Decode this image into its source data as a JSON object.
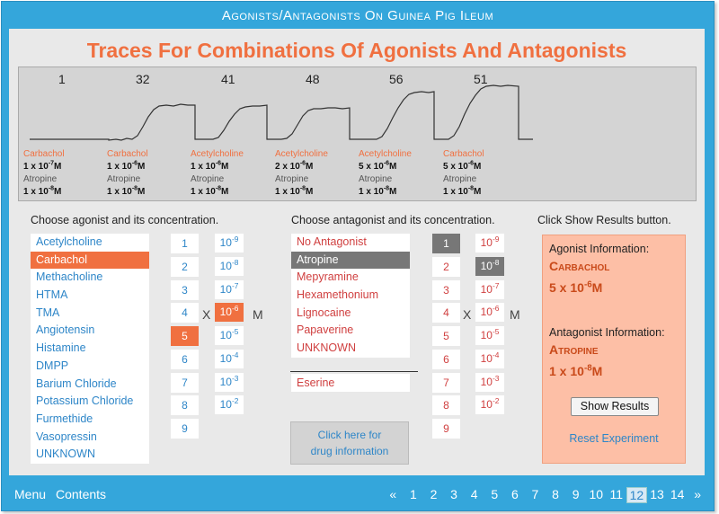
{
  "app": {
    "title": "Agonists/Antagonists On Guinea Pig Ileum"
  },
  "main_title": "Traces For Combinations Of Agonists And Antagonists",
  "traces": [
    {
      "number": "1",
      "agonist": "Carbachol",
      "conc_mant": "1 x 10",
      "conc_exp": "-7",
      "antagonist": "Atropine",
      "ant_mant": "1 x 10",
      "ant_exp": "-8"
    },
    {
      "number": "32",
      "agonist": "Carbachol",
      "conc_mant": "1 x 10",
      "conc_exp": "-6",
      "antagonist": "Atropine",
      "ant_mant": "1 x 10",
      "ant_exp": "-8"
    },
    {
      "number": "41",
      "agonist": "Acetylcholine",
      "conc_mant": "1 x 10",
      "conc_exp": "-6",
      "antagonist": "Atropine",
      "ant_mant": "1 x 10",
      "ant_exp": "-8"
    },
    {
      "number": "48",
      "agonist": "Acetylcholine",
      "conc_mant": "2 x 10",
      "conc_exp": "-6",
      "antagonist": "Atropine",
      "ant_mant": "1 x 10",
      "ant_exp": "-8"
    },
    {
      "number": "56",
      "agonist": "Acetylcholine",
      "conc_mant": "5 x 10",
      "conc_exp": "-6",
      "antagonist": "Atropine",
      "ant_mant": "1 x 10",
      "ant_exp": "-8"
    },
    {
      "number": "51",
      "agonist": "Carbachol",
      "conc_mant": "5 x 10",
      "conc_exp": "-6",
      "antagonist": "Atropine",
      "ant_mant": "1 x 10",
      "ant_exp": "-8"
    }
  ],
  "agonist_section": {
    "heading": "Choose agonist and its concentration.",
    "items": [
      "Acetylcholine",
      "Carbachol",
      "Methacholine",
      "HTMA",
      "TMA",
      "Angiotensin",
      "Histamine",
      "DMPP",
      "Barium Chloride",
      "Potassium Chloride",
      "Furmethide",
      "Vasopressin",
      "UNKNOWN"
    ],
    "selected_item": "Carbachol",
    "numbers": [
      "1",
      "2",
      "3",
      "4",
      "5",
      "6",
      "7",
      "8",
      "9"
    ],
    "selected_number": "5",
    "exponent_base": "10",
    "exponents": [
      "-9",
      "-8",
      "-7",
      "-6",
      "-5",
      "-4",
      "-3",
      "-2"
    ],
    "selected_exponent": "-6",
    "x_label": "X",
    "m_label": "M"
  },
  "antagonist_section": {
    "heading": "Choose antagonist and its concentration.",
    "items": [
      "No Antagonist",
      "Atropine",
      "Mepyramine",
      "Hexamethonium",
      "Lignocaine",
      "Papaverine",
      "UNKNOWN"
    ],
    "selected_item": "Atropine",
    "extra_item": "Eserine",
    "numbers": [
      "1",
      "2",
      "3",
      "4",
      "5",
      "6",
      "7",
      "8",
      "9"
    ],
    "selected_number": "1",
    "exponent_base": "10",
    "exponents": [
      "-9",
      "-8",
      "-7",
      "-6",
      "-5",
      "-4",
      "-3",
      "-2"
    ],
    "selected_exponent": "-8",
    "x_label": "X",
    "m_label": "M",
    "info_button_line1": "Click here for",
    "info_button_line2": "drug information"
  },
  "results": {
    "heading": "Click Show Results button.",
    "agonist_label": "Agonist Information:",
    "agonist_name": "Carbachol",
    "agonist_conc_mant": "5 x 10",
    "agonist_conc_exp": "-6",
    "agonist_conc_unit": "M",
    "antagonist_label": "Antagonist Information:",
    "antagonist_name": "Atropine",
    "antagonist_conc_mant": "1 x 10",
    "antagonist_conc_exp": "-8",
    "antagonist_conc_unit": "M",
    "show_button": "Show Results",
    "reset_link": "Reset Experiment"
  },
  "footer": {
    "menu": "Menu",
    "contents": "Contents",
    "prev": "«",
    "next": "»",
    "pages": [
      "1",
      "2",
      "3",
      "4",
      "5",
      "6",
      "7",
      "8",
      "9",
      "10",
      "11",
      "12",
      "13",
      "14"
    ],
    "current_page": "12"
  },
  "colors": {
    "frame_blue": "#34a6db",
    "accent_orange": "#f07040",
    "link_blue": "#2e86c8",
    "antagonist_red": "#d04040",
    "selected_gray": "#777777",
    "result_bg": "#fdbfa6"
  }
}
